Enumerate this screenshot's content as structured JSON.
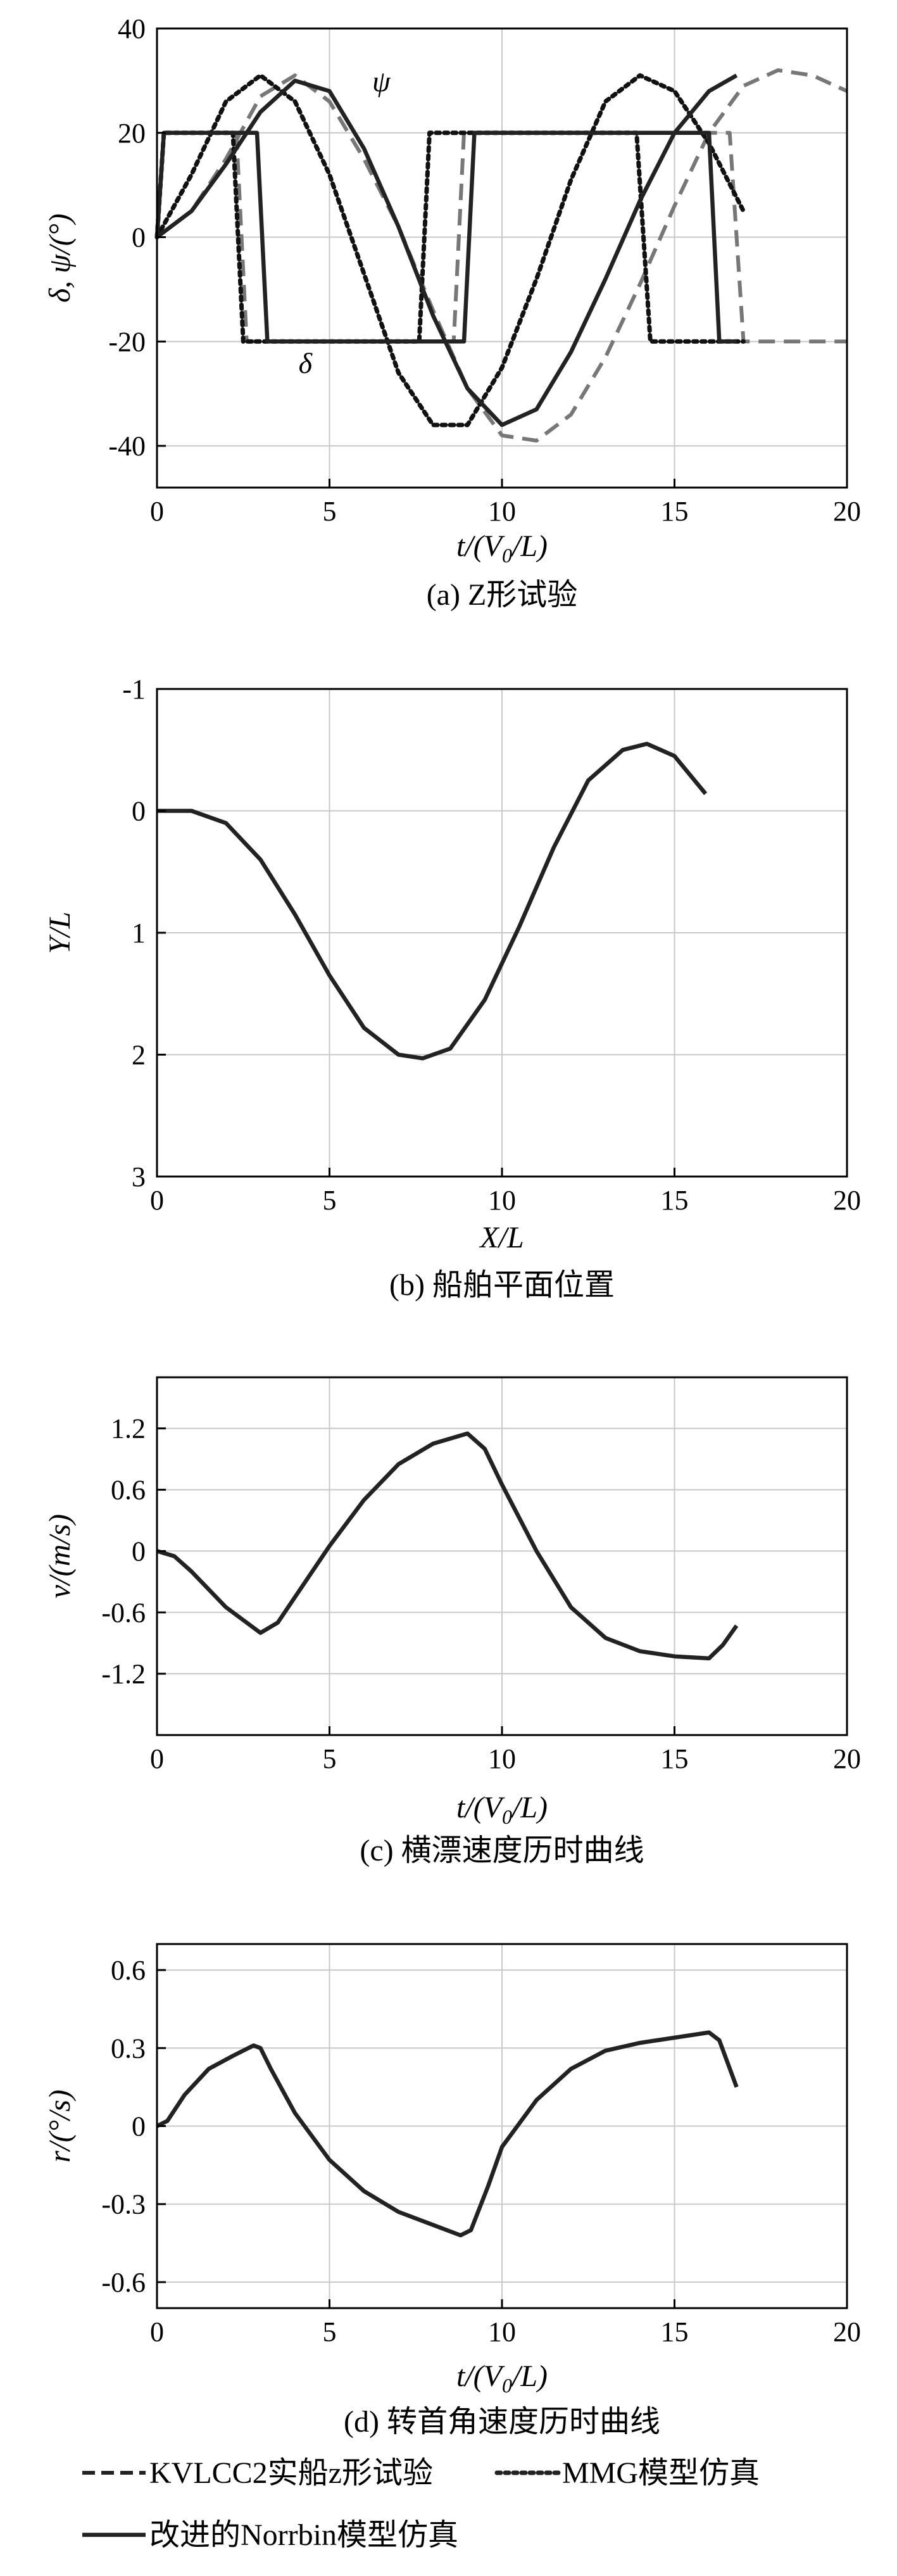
{
  "chart_data": [
    {
      "type": "line",
      "caption": "(a) Z形试验",
      "xlabel": "t/(V0/L)",
      "ylabel": "δ, ψ/(°)",
      "xlim": [
        0,
        20
      ],
      "ylim": [
        -48,
        40
      ],
      "xticks": [
        "0",
        "5",
        "10",
        "15",
        "20"
      ],
      "yticks": [
        "40",
        "20",
        "0",
        "-20",
        "-40"
      ],
      "ytick_values": [
        40,
        20,
        0,
        -20,
        -40
      ],
      "grid": true,
      "annotations": [
        {
          "text": "ψ",
          "x": 6.5,
          "y": 28
        },
        {
          "text": "δ",
          "x": 4.3,
          "y": -26
        }
      ],
      "series": [
        {
          "key": "kvlcc2",
          "role": "psi",
          "style": "dashed",
          "color": "#777777",
          "x": [
            0,
            1,
            2,
            3,
            4,
            5,
            6,
            7,
            8,
            9,
            10,
            11,
            12,
            13,
            14,
            15,
            16,
            17,
            18,
            19,
            20
          ],
          "y": [
            0,
            5,
            15,
            27,
            31,
            26,
            15,
            2,
            -14,
            -29,
            -38,
            -39,
            -34,
            -23,
            -9,
            6,
            20,
            29,
            32,
            31,
            28
          ]
        },
        {
          "key": "kvlcc2",
          "role": "delta",
          "style": "dashed",
          "color": "#777777",
          "x": [
            0,
            0.2,
            2.3,
            2.6,
            8.6,
            8.9,
            16.6,
            17.0,
            20
          ],
          "y": [
            0,
            20,
            20,
            -20,
            -20,
            20,
            20,
            -20,
            -20
          ]
        },
        {
          "key": "mmg",
          "role": "psi",
          "style": "dotted",
          "color": "#111111",
          "x": [
            0,
            1,
            2,
            3,
            4,
            5,
            6,
            7,
            8,
            9,
            10,
            11,
            12,
            13,
            14,
            15,
            16,
            17
          ],
          "y": [
            0,
            12,
            26,
            31,
            26,
            12,
            -7,
            -26,
            -36,
            -36,
            -25,
            -8,
            11,
            26,
            31,
            28,
            18,
            5
          ]
        },
        {
          "key": "mmg",
          "role": "delta",
          "style": "dotted",
          "color": "#111111",
          "x": [
            0,
            0.2,
            2.2,
            2.5,
            7.6,
            7.9,
            13.9,
            14.3,
            17
          ],
          "y": [
            0,
            20,
            20,
            -20,
            -20,
            20,
            20,
            -20,
            -20
          ]
        },
        {
          "key": "norrbin",
          "role": "psi",
          "style": "solid",
          "color": "#222222",
          "x": [
            0,
            1,
            2,
            3,
            4,
            5,
            6,
            7,
            8,
            9,
            10,
            11,
            12,
            13,
            14,
            15,
            16,
            16.8
          ],
          "y": [
            0,
            5,
            14,
            24,
            30,
            28,
            17,
            2,
            -15,
            -29,
            -36,
            -33,
            -22,
            -8,
            7,
            20,
            28,
            31
          ]
        },
        {
          "key": "norrbin",
          "role": "delta",
          "style": "solid",
          "color": "#222222",
          "x": [
            0,
            0.2,
            2.9,
            3.2,
            8.9,
            9.2,
            16.0,
            16.3,
            16.8
          ],
          "y": [
            0,
            20,
            20,
            -20,
            -20,
            20,
            20,
            -20,
            -20
          ]
        }
      ]
    },
    {
      "type": "line",
      "caption": "(b) 船舶平面位置",
      "xlabel": "X/L",
      "ylabel": "Y/L",
      "xlim": [
        0,
        20
      ],
      "ylim": [
        -1,
        3
      ],
      "inverted_y": true,
      "xticks": [
        "0",
        "5",
        "10",
        "15",
        "20"
      ],
      "yticks": [
        "-1",
        "0",
        "1",
        "2",
        "3"
      ],
      "ytick_values": [
        -1,
        0,
        1,
        2,
        3
      ],
      "grid": true,
      "series": [
        {
          "key": "norrbin",
          "style": "solid",
          "color": "#222222",
          "x": [
            0,
            1,
            2,
            3,
            4,
            5,
            6,
            7,
            7.7,
            8.5,
            9.5,
            10.5,
            11.5,
            12.5,
            13.5,
            14.2,
            15,
            15.9
          ],
          "y": [
            0,
            0,
            0.1,
            0.4,
            0.85,
            1.35,
            1.78,
            2.0,
            2.03,
            1.95,
            1.55,
            0.95,
            0.3,
            -0.25,
            -0.5,
            -0.55,
            -0.45,
            -0.14
          ]
        }
      ]
    },
    {
      "type": "line",
      "caption": "(c) 横漂速度历时曲线",
      "xlabel": "t/(V0/L)",
      "ylabel": "v/(m/s)",
      "xlim": [
        0,
        20
      ],
      "ylim": [
        -1.8,
        1.7
      ],
      "xticks": [
        "0",
        "5",
        "10",
        "15",
        "20"
      ],
      "yticks": [
        "1.2",
        "0.6",
        "0",
        "-0.6",
        "-1.2"
      ],
      "ytick_values": [
        1.2,
        0.6,
        0,
        -0.6,
        -1.2
      ],
      "grid": true,
      "series": [
        {
          "key": "norrbin",
          "style": "solid",
          "color": "#222222",
          "x": [
            0,
            0.5,
            1,
            2,
            3,
            3.5,
            4,
            5,
            6,
            7,
            8,
            9,
            9.5,
            10,
            11,
            12,
            13,
            14,
            15,
            16,
            16.4,
            16.8
          ],
          "y": [
            0,
            -0.05,
            -0.2,
            -0.55,
            -0.8,
            -0.7,
            -0.45,
            0.05,
            0.5,
            0.85,
            1.05,
            1.15,
            1.0,
            0.65,
            0.0,
            -0.55,
            -0.85,
            -0.98,
            -1.03,
            -1.05,
            -0.92,
            -0.73
          ]
        }
      ]
    },
    {
      "type": "line",
      "caption": "(d) 转首角速度历时曲线",
      "xlabel": "t/(V0/L)",
      "ylabel": "r/(°/s)",
      "xlim": [
        0,
        20
      ],
      "ylim": [
        -0.7,
        0.7
      ],
      "xticks": [
        "0",
        "5",
        "10",
        "15",
        "20"
      ],
      "yticks": [
        "0.6",
        "0.3",
        "0",
        "-0.3",
        "-0.6"
      ],
      "ytick_values": [
        0.6,
        0.3,
        0,
        -0.3,
        -0.6
      ],
      "grid": true,
      "series": [
        {
          "key": "norrbin",
          "style": "solid",
          "color": "#222222",
          "x": [
            0,
            0.3,
            0.8,
            1.5,
            2.2,
            2.8,
            3.0,
            3.3,
            4,
            5,
            6,
            7,
            8,
            8.8,
            9.1,
            9.6,
            10,
            11,
            12,
            13,
            14,
            15,
            16,
            16.3,
            16.8
          ],
          "y": [
            0,
            0.02,
            0.12,
            0.22,
            0.27,
            0.31,
            0.3,
            0.22,
            0.05,
            -0.13,
            -0.25,
            -0.33,
            -0.38,
            -0.42,
            -0.4,
            -0.23,
            -0.08,
            0.1,
            0.22,
            0.29,
            0.32,
            0.34,
            0.36,
            0.33,
            0.15
          ]
        }
      ]
    }
  ],
  "legend": {
    "items": [
      {
        "key": "kvlcc2",
        "label": "KVLCC2实船z形试验",
        "style": "dashed"
      },
      {
        "key": "mmg",
        "label": "MMG模型仿真",
        "style": "dotted"
      },
      {
        "key": "norrbin",
        "label": "改进的Norrbin模型仿真",
        "style": "solid"
      }
    ]
  }
}
